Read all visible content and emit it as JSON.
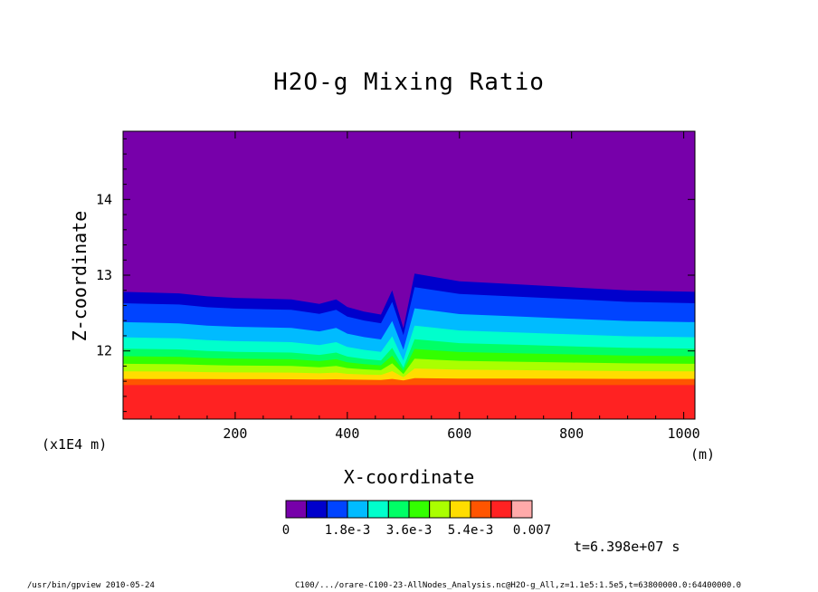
{
  "chart_data": {
    "type": "heatmap",
    "title": "H2O-g Mixing Ratio",
    "xlabel": "X-coordinate",
    "ylabel": "Z-coordinate",
    "x_unit_label": "(m)",
    "y_unit_label": "(x1E4 m)",
    "xlim": [
      0,
      1020
    ],
    "ylim": [
      11.1,
      14.9
    ],
    "x_ticks": [
      200,
      400,
      600,
      800,
      1000
    ],
    "y_ticks": [
      12,
      13,
      14
    ],
    "x_tick_labels": [
      "200",
      "400",
      "600",
      "800",
      "1000"
    ],
    "y_tick_labels": [
      "12",
      "13",
      "14"
    ],
    "contour_levels": [
      0,
      0.0006,
      0.0012,
      0.0018,
      0.0024,
      0.003,
      0.0036,
      0.0042,
      0.0048,
      0.0054,
      0.006,
      0.0066,
      0.007
    ],
    "colorbar": {
      "colors": [
        "#7700aa",
        "#0000cc",
        "#0044ff",
        "#00bbff",
        "#00ffcc",
        "#00ff66",
        "#33ff00",
        "#aaff00",
        "#ffdd00",
        "#ff5500",
        "#ff2222",
        "#ffaaaa"
      ],
      "labels": [
        "0",
        "1.8e-3",
        "3.6e-3",
        "5.4e-3",
        "0.007"
      ]
    },
    "boundary_profile_x": [
      0,
      50,
      100,
      150,
      200,
      250,
      300,
      350,
      380,
      400,
      430,
      460,
      480,
      500,
      520,
      560,
      600,
      700,
      800,
      900,
      1020
    ],
    "boundary_profile_z": [
      12.78,
      12.77,
      12.76,
      12.72,
      12.7,
      12.69,
      12.68,
      12.62,
      12.68,
      12.58,
      12.52,
      12.48,
      12.8,
      12.3,
      13.02,
      12.97,
      12.92,
      12.88,
      12.84,
      12.8,
      12.78
    ],
    "band_offsets": [
      0,
      0.15,
      0.25,
      0.2,
      0.15,
      0.1,
      0.1,
      0.1,
      0.1,
      0.1,
      0.12
    ],
    "surface_band_top_z": 11.55
  },
  "timestamp": "t=6.398e+07 s",
  "footer_left": "/usr/bin/gpview  2010-05-24",
  "footer_right": "C100/.../orare-C100-23-AllNodes_Analysis.nc@H2O-g_All,z=1.1e5:1.5e5,t=63800000.0:64400000.0"
}
